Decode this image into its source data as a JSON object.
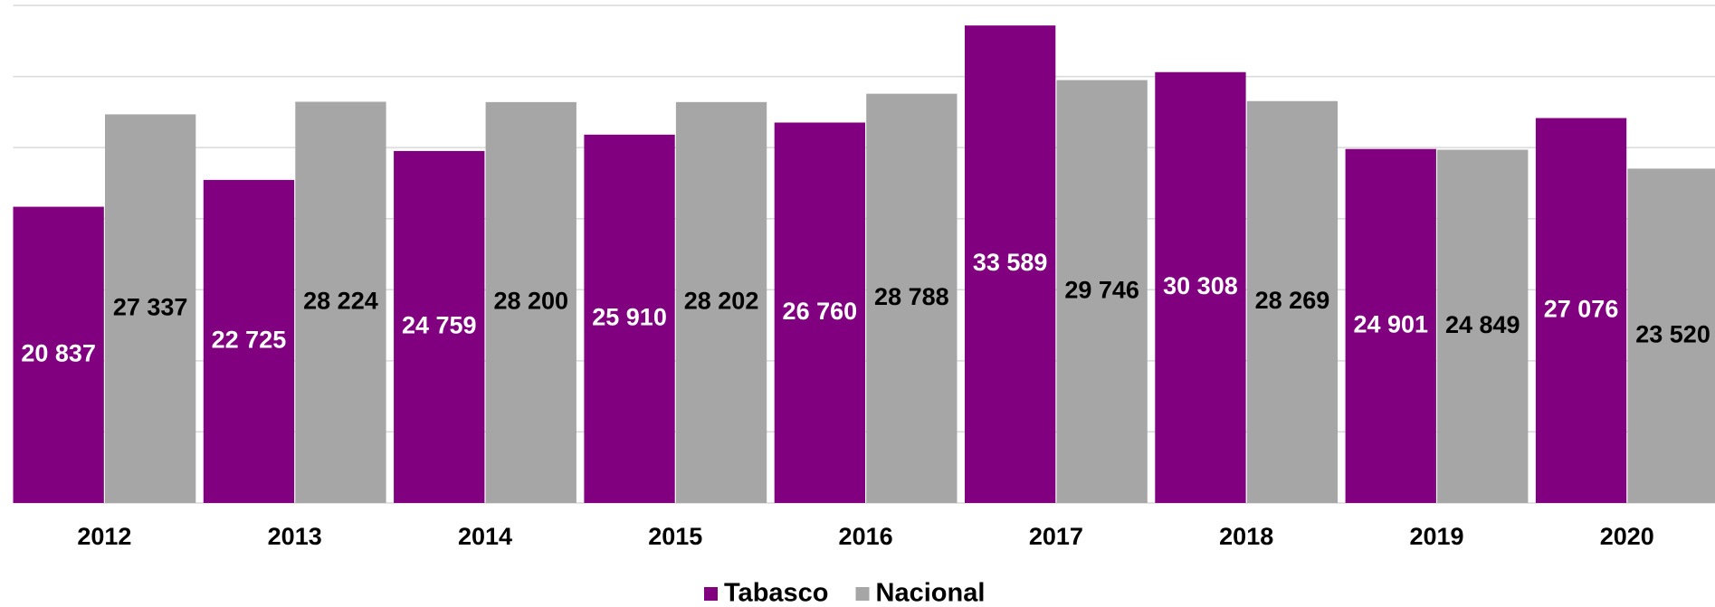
{
  "chart_data": {
    "type": "bar",
    "categories": [
      "2012",
      "2013",
      "2014",
      "2015",
      "2016",
      "2017",
      "2018",
      "2019",
      "2020"
    ],
    "series": [
      {
        "name": "Tabasco",
        "color": "#800080",
        "values": [
          20837,
          22725,
          24759,
          25910,
          26760,
          33589,
          30308,
          24901,
          27076
        ],
        "value_labels": [
          "20 837",
          "22 725",
          "24 759",
          "25 910",
          "26 760",
          "33 589",
          "30 308",
          "24 901",
          "27 076"
        ]
      },
      {
        "name": "Nacional",
        "color": "#a6a6a6",
        "values": [
          27337,
          28224,
          28200,
          28202,
          28788,
          29746,
          28269,
          24849,
          23520
        ],
        "value_labels": [
          "27 337",
          "28 224",
          "28 200",
          "28 202",
          "28 788",
          "29 746",
          "28 269",
          "24 849",
          "23 520"
        ]
      }
    ],
    "ylim": [
      0,
      35000
    ],
    "yticks": [
      0,
      5000,
      10000,
      15000,
      20000,
      25000,
      30000,
      35000
    ],
    "grid": true,
    "legend": "bottom"
  }
}
